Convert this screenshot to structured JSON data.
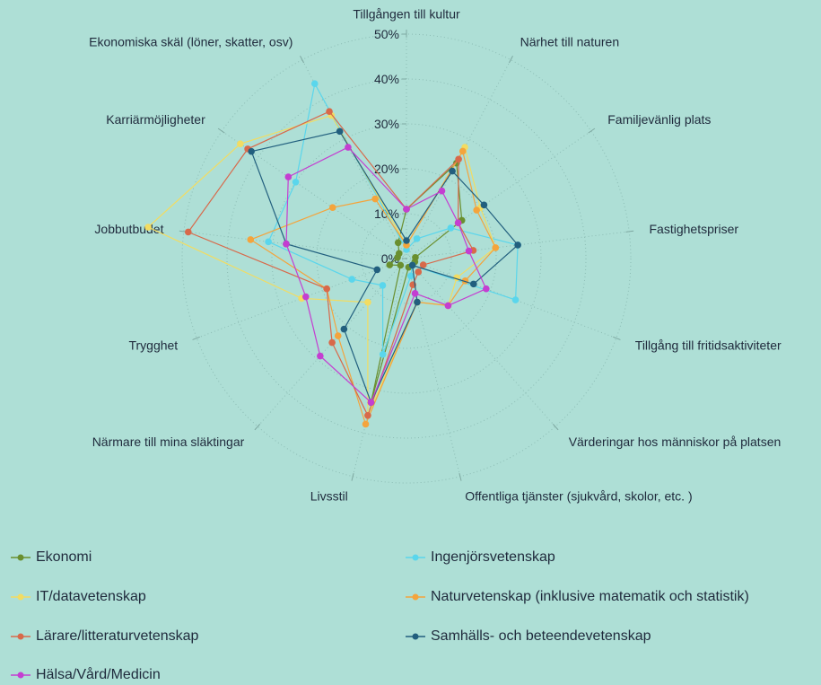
{
  "chart_data": {
    "type": "radar",
    "title": "",
    "radial_ticks": [
      "0%",
      "10%",
      "20%",
      "30%",
      "40%",
      "50%"
    ],
    "radial_range": [
      0,
      50
    ],
    "axes": [
      "Tillgången till kultur",
      "Närhet till naturen",
      "Familjevänlig plats",
      "Fastighetspriser",
      "Tillgång till fritidsaktiviteter",
      "Värderingar hos människor på platsen",
      "Offentliga tjänster (sjukvård, skolor, etc. )",
      "Livsstil",
      "Närmare till mina släktingar",
      "Trygghet",
      "Jobbutbudet",
      "Karriärmöjligheter",
      "Ekonomiska skäl (löner, skatter, osv)"
    ],
    "legend_placement": "bottom",
    "series": [
      {
        "name": "Ekonomi",
        "color": "#6a8f2f",
        "values": [
          11,
          24,
          15,
          2,
          2,
          2,
          2,
          33,
          2,
          4,
          2,
          2,
          4
        ]
      },
      {
        "name": "Ingenjörsvetenskap",
        "color": "#5ad6ec",
        "values": [
          2,
          5,
          12,
          25,
          26,
          2,
          4,
          22,
          8,
          13,
          31,
          30,
          44
        ]
      },
      {
        "name": "IT/datavetenskap",
        "color": "#f2dc62",
        "values": [
          3,
          28,
          20,
          20,
          12,
          14,
          10,
          36,
          13,
          25,
          58,
          45,
          36
        ]
      },
      {
        "name": "Naturvetenskap (inklusive matematik och statistik)",
        "color": "#f4a43c",
        "values": [
          3,
          27,
          19,
          20,
          14,
          14,
          10,
          38,
          23,
          19,
          35,
          20,
          15
        ]
      },
      {
        "name": "Lärare/litteraturvetenskap",
        "color": "#d8694a",
        "values": [
          11,
          25,
          14,
          15,
          4,
          4,
          6,
          36,
          25,
          19,
          49,
          43,
          37
        ]
      },
      {
        "name": "Samhälls- och beteendevetenskap",
        "color": "#225f7e",
        "values": [
          4,
          22,
          21,
          25,
          16,
          2,
          10,
          33,
          21,
          7,
          27,
          42,
          32
        ]
      },
      {
        "name": "Hälsa/Vård/Medicin",
        "color": "#c43ed1",
        "values": [
          11,
          17,
          14,
          14,
          19,
          14,
          8,
          33,
          29,
          24,
          27,
          32,
          28
        ]
      }
    ]
  }
}
